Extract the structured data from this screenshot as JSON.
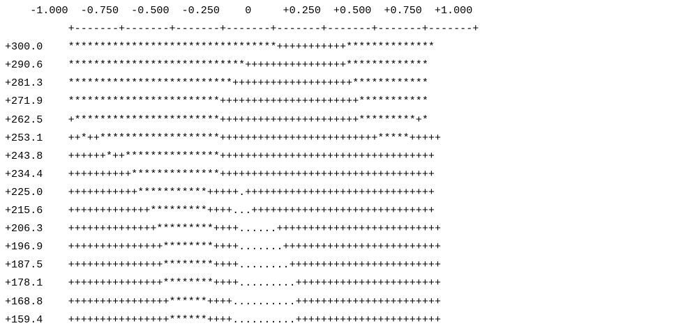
{
  "ascii_plot": {
    "x_tick_labels": "    -1.000  -0.750  -0.500  -0.250    0     +0.250  +0.500  +0.750  +1.000",
    "x_axis": "          +-------+-------+-------+-------+-------+-------+-------+-------+",
    "rows": [
      {
        "label": "+300.0",
        "pattern": "*********************************+++++++++++**************"
      },
      {
        "label": "+290.6",
        "pattern": "****************************++++++++++++++++*************"
      },
      {
        "label": "+281.3",
        "pattern": "**************************+++++++++++++++++++************"
      },
      {
        "label": "+271.9",
        "pattern": "************************++++++++++++++++++++++***********"
      },
      {
        "label": "+262.5",
        "pattern": "+***********************++++++++++++++++++++++*********+*"
      },
      {
        "label": "+253.1",
        "pattern": "++*++*******************+++++++++++++++++++++++++*****+++++"
      },
      {
        "label": "+243.8",
        "pattern": "++++++*++***************++++++++++++++++++++++++++++++++++"
      },
      {
        "label": "+234.4",
        "pattern": "++++++++++**************++++++++++++++++++++++++++++++++++"
      },
      {
        "label": "+225.0",
        "pattern": "+++++++++++***********+++++.++++++++++++++++++++++++++++++"
      },
      {
        "label": "+215.6",
        "pattern": "+++++++++++++*********++++...+++++++++++++++++++++++++++++"
      },
      {
        "label": "+206.3",
        "pattern": "++++++++++++++*********++++......++++++++++++++++++++++++++"
      },
      {
        "label": "+196.9",
        "pattern": "+++++++++++++++********++++.......+++++++++++++++++++++++++"
      },
      {
        "label": "+187.5",
        "pattern": "+++++++++++++++********++++........++++++++++++++++++++++++"
      },
      {
        "label": "+178.1",
        "pattern": "+++++++++++++++********++++.........+++++++++++++++++++++++"
      },
      {
        "label": "+168.8",
        "pattern": "++++++++++++++++******++++..........+++++++++++++++++++++++"
      },
      {
        "label": "+159.4",
        "pattern": "++++++++++++++++******++++..........+++++++++++++++++++++++"
      }
    ]
  }
}
